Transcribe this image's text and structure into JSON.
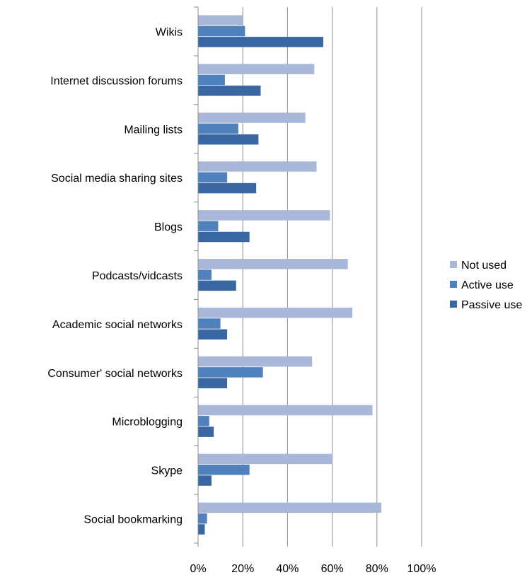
{
  "chart_data": {
    "type": "bar",
    "orientation": "horizontal",
    "title": "",
    "xlabel": "",
    "ylabel": "",
    "xlim": [
      0,
      100
    ],
    "x_ticks": [
      "0%",
      "20%",
      "40%",
      "60%",
      "80%",
      "100%"
    ],
    "grid": true,
    "legend_position": "right",
    "categories": [
      "Wikis",
      "Internet discussion forums",
      "Mailing lists",
      "Social media sharing sites",
      "Blogs",
      "Podcasts/vidcasts",
      "Academic social networks",
      "Consumer' social networks",
      "Microblogging",
      "Skype",
      "Social bookmarking"
    ],
    "series": [
      {
        "name": "Not used",
        "color": "#a9b8d8",
        "values": [
          20,
          52,
          48,
          53,
          59,
          67,
          69,
          51,
          78,
          60,
          82
        ]
      },
      {
        "name": "Active use",
        "color": "#4f81bd",
        "values": [
          21,
          12,
          18,
          13,
          9,
          6,
          10,
          29,
          5,
          23,
          4
        ]
      },
      {
        "name": "Passive use",
        "color": "#3a67a1",
        "values": [
          56,
          28,
          27,
          26,
          23,
          17,
          13,
          13,
          7,
          6,
          3
        ]
      }
    ]
  }
}
